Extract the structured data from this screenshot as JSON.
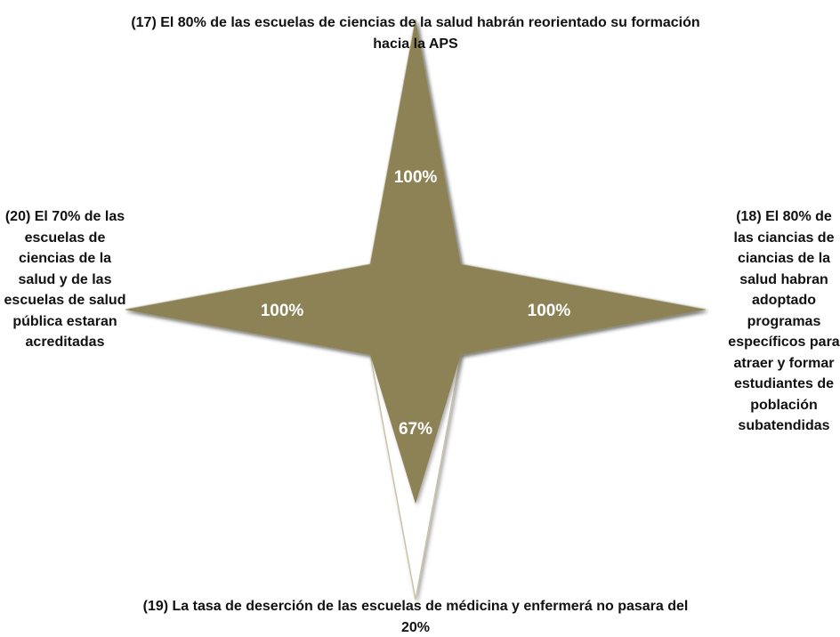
{
  "chart_data": {
    "type": "radar",
    "categories": [
      "(17) El 80% de las escuelas de ciencias de la salud habrán reorientado su formación hacia la APS",
      "(18) El 80% de las ciancias de ciancias de la salud habran adoptado programas específicos para atraer y formar estudiantes de población subatendidas",
      "(19) La tasa de deserción de las escuelas de médicina y enfermerá no pasara del 20%",
      "(20) El 70% de las escuelas de ciencias de la salud y de las escuelas de salud pública estaran acreditadas"
    ],
    "values": [
      100,
      100,
      67,
      100
    ],
    "value_labels": [
      "100%",
      "100%",
      "67%",
      "100%"
    ],
    "color": "#8c8254",
    "rlim": [
      0,
      100
    ]
  }
}
